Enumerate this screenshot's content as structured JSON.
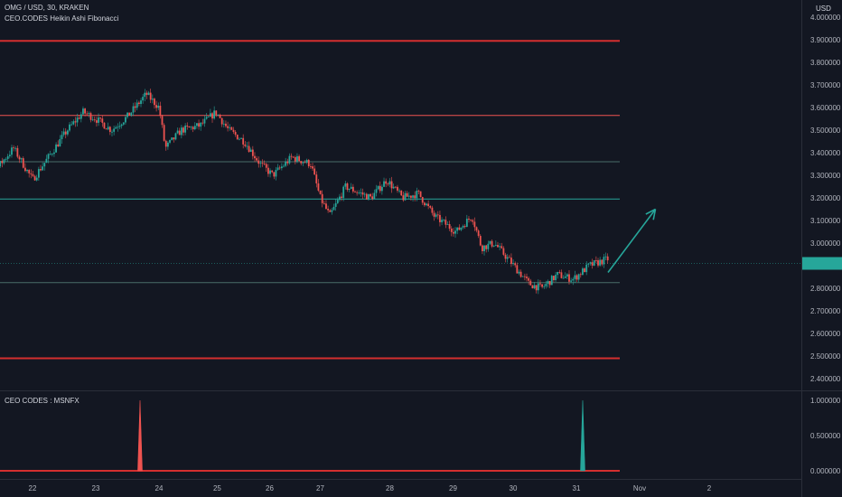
{
  "header": {
    "symbol_line": "OMG / USD, 30, KRAKEN",
    "indicator_name": "CEO.CODES Heikin Ashi Fibonacci",
    "currency": "USD"
  },
  "sub_panel": {
    "title": "CEO CODES : MSNFX"
  },
  "colors": {
    "background": "#131722",
    "up": "#26a69a",
    "down": "#ef5350",
    "red_line": "#d32f2f",
    "price_tag": "#26a69a"
  },
  "chart_data": [
    {
      "type": "candlestick",
      "title": "OMG / USD, 30, KRAKEN",
      "ylim": [
        2.35,
        4.0
      ],
      "y_ticks": [
        "4.000000",
        "3.900000",
        "3.800000",
        "3.700000",
        "3.600000",
        "3.500000",
        "3.400000",
        "3.300000",
        "3.200000",
        "3.100000",
        "3.000000",
        "2.900000",
        "2.800000",
        "2.700000",
        "2.600000",
        "2.500000",
        "2.400000"
      ],
      "x_ticks": [
        {
          "label": "22",
          "t": 1.0
        },
        {
          "label": "23",
          "t": 2.0
        },
        {
          "label": "24",
          "t": 3.0
        },
        {
          "label": "25",
          "t": 3.92
        },
        {
          "label": "26",
          "t": 4.75
        },
        {
          "label": "27",
          "t": 5.55
        },
        {
          "label": "28",
          "t": 6.65
        },
        {
          "label": "29",
          "t": 7.65
        },
        {
          "label": "30",
          "t": 8.6
        },
        {
          "label": "31",
          "t": 9.6
        },
        {
          "label": "Nov",
          "t": 10.6
        },
        {
          "label": "2",
          "t": 11.7
        }
      ],
      "path": [
        [
          0.0,
          3.25
        ],
        [
          0.4,
          3.32
        ],
        [
          0.7,
          3.42
        ],
        [
          1.0,
          3.28
        ],
        [
          1.3,
          3.4
        ],
        [
          1.55,
          3.5
        ],
        [
          1.8,
          3.58
        ],
        [
          2.0,
          3.55
        ],
        [
          2.25,
          3.5
        ],
        [
          2.5,
          3.56
        ],
        [
          2.8,
          3.66
        ],
        [
          3.0,
          3.6
        ],
        [
          3.1,
          3.42
        ],
        [
          3.35,
          3.5
        ],
        [
          3.65,
          3.52
        ],
        [
          3.9,
          3.58
        ],
        [
          4.1,
          3.5
        ],
        [
          4.35,
          3.45
        ],
        [
          4.6,
          3.35
        ],
        [
          4.8,
          3.3
        ],
        [
          5.1,
          3.38
        ],
        [
          5.4,
          3.35
        ],
        [
          5.55,
          3.2
        ],
        [
          5.7,
          3.12
        ],
        [
          5.95,
          3.25
        ],
        [
          6.35,
          3.2
        ],
        [
          6.6,
          3.28
        ],
        [
          6.85,
          3.2
        ],
        [
          7.1,
          3.22
        ],
        [
          7.35,
          3.12
        ],
        [
          7.7,
          3.05
        ],
        [
          7.95,
          3.12
        ],
        [
          8.1,
          2.98
        ],
        [
          8.3,
          3.0
        ],
        [
          8.55,
          2.92
        ],
        [
          8.85,
          2.82
        ],
        [
          9.05,
          2.8
        ],
        [
          9.3,
          2.86
        ],
        [
          9.55,
          2.84
        ],
        [
          9.8,
          2.9
        ],
        [
          10.1,
          2.93
        ]
      ],
      "horizontal_lines": [
        {
          "value": 3.895,
          "color": "#d32f2f",
          "width": 2
        },
        {
          "value": 3.565,
          "color": "#ef5350",
          "width": 1
        },
        {
          "value": 3.36,
          "color": "#4a6e68",
          "width": 1
        },
        {
          "value": 3.195,
          "color": "#26a69a",
          "width": 1
        },
        {
          "value": 2.825,
          "color": "#4a6e68",
          "width": 1
        },
        {
          "value": 2.49,
          "color": "#d32f2f",
          "width": 2
        }
      ],
      "last_price": 2.91,
      "projection_arrow": {
        "from": [
          10.1,
          2.87
        ],
        "to": [
          10.85,
          3.15
        ]
      }
    },
    {
      "type": "line",
      "title": "CEO CODES : MSNFX",
      "ylim": [
        -0.05,
        1.05
      ],
      "y_ticks": [
        "1.000000",
        "0.500000",
        "0.000000"
      ],
      "baseline": 0,
      "spikes": [
        {
          "t": 2.7,
          "value": 1.0,
          "color": "#ef5350"
        },
        {
          "t": 9.7,
          "value": 1.0,
          "color": "#26a69a"
        }
      ]
    }
  ]
}
